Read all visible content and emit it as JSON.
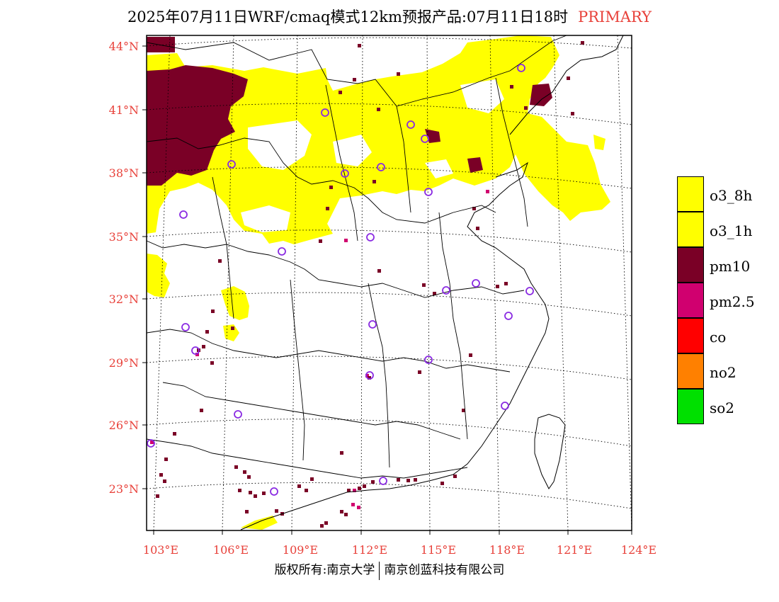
{
  "title": {
    "main": "2025年07月11日WRF/cmaq模式12km预报产品:07月11日18时",
    "tag": "PRIMARY"
  },
  "map": {
    "lat_labels": [
      "44°N",
      "41°N",
      "38°N",
      "35°N",
      "32°N",
      "29°N",
      "26°N",
      "23°N"
    ],
    "lon_labels": [
      "103°E",
      "106°E",
      "109°E",
      "112°E",
      "115°E",
      "118°E",
      "121°E",
      "124°E"
    ],
    "axis_label_color": "#e8413a",
    "pollutant_colors": {
      "o3": "#ffff00",
      "pm10": "#7a0026",
      "pm2_5": "#d0006f",
      "station_marker": "#8a2be2"
    }
  },
  "legend": {
    "items": [
      {
        "label": "o3_8h",
        "color": "#ffff00"
      },
      {
        "label": "o3_1h",
        "color": "#ffff00"
      },
      {
        "label": "pm10",
        "color": "#7a0026"
      },
      {
        "label": "pm2.5",
        "color": "#d0006f"
      },
      {
        "label": "co",
        "color": "#ff0000"
      },
      {
        "label": "no2",
        "color": "#ff8000"
      },
      {
        "label": "so2",
        "color": "#00e000"
      }
    ]
  },
  "credit": {
    "left": "版权所有:南京大学",
    "right": "南京创蓝科技有限公司"
  }
}
